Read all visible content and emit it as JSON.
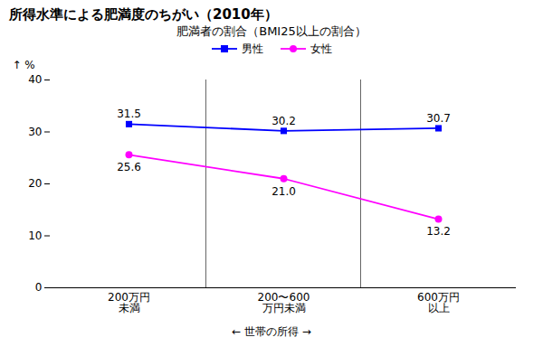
{
  "chart_data": {
    "type": "line",
    "title": "所得水準による肥満度のちがい（2010年）",
    "subtitle": "肥満者の割合（BMI25以上の割合）",
    "ylabel": "%",
    "xlabel": "← 世帯の所得 →",
    "categories": [
      "200万円\n未満",
      "200〜600\n万円未満",
      "600万円\n以上"
    ],
    "series": [
      {
        "name": "男性",
        "color": "#0000FF",
        "marker": "square",
        "values": [
          31.5,
          30.2,
          30.7
        ]
      },
      {
        "name": "女性",
        "color": "#FF00FF",
        "marker": "circle",
        "values": [
          25.6,
          21.0,
          13.2
        ],
        "value_labels": [
          "25.6",
          "21.0",
          "13.2"
        ]
      }
    ],
    "ylim": [
      0,
      40
    ],
    "yticks": [
      0,
      10,
      20,
      30,
      40
    ],
    "data_labels": true,
    "grid": false
  }
}
